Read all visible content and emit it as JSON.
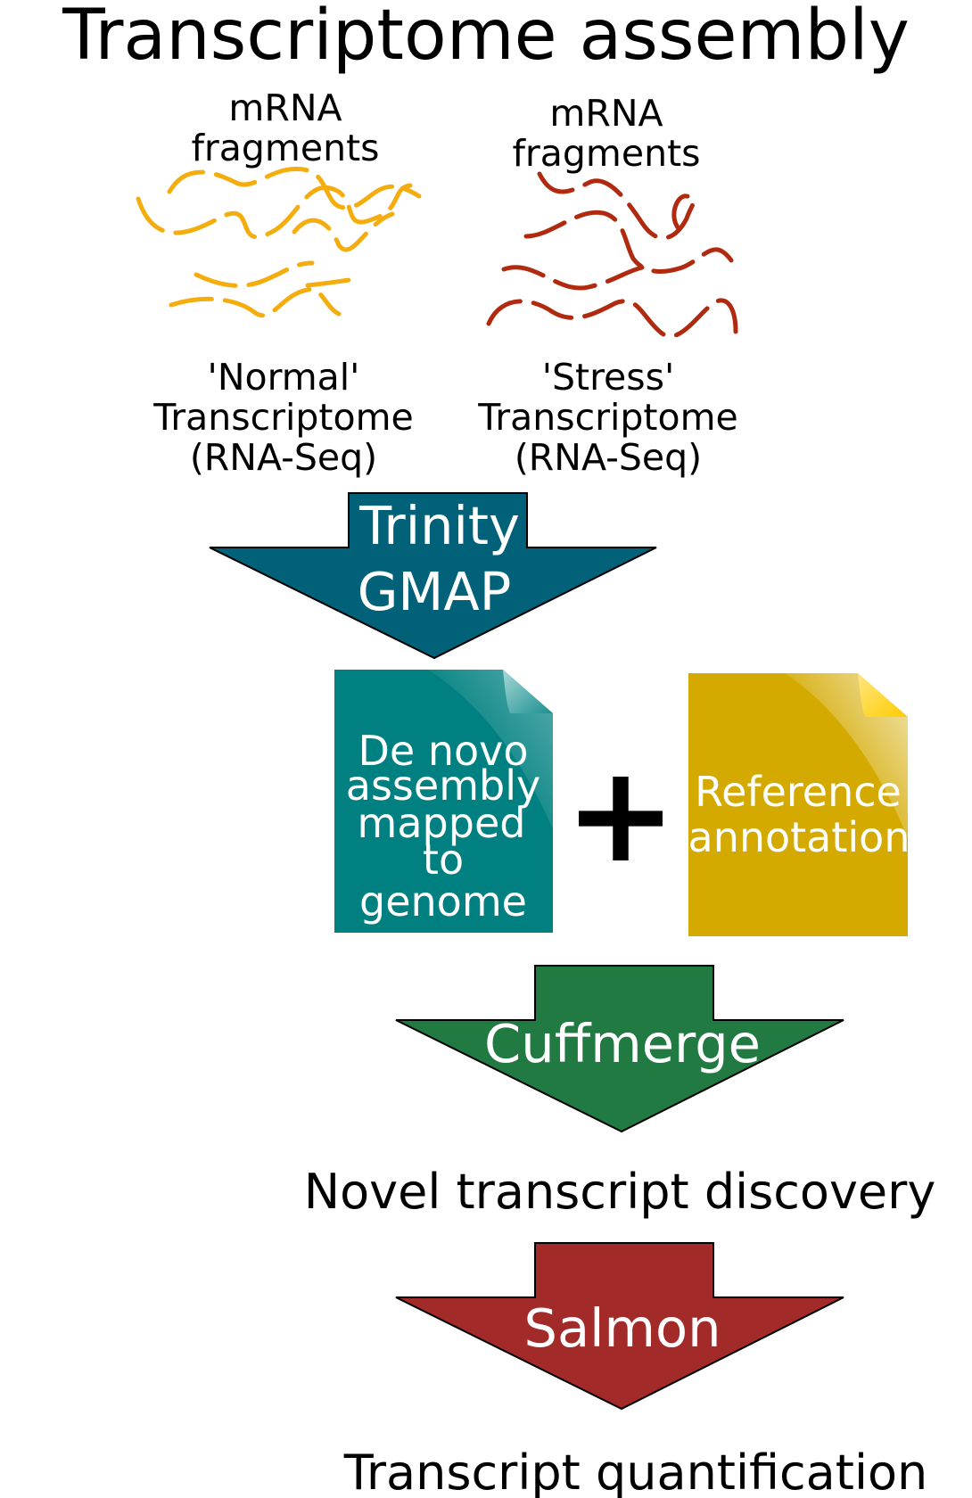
{
  "title": "Transcriptome assembly",
  "samples": [
    {
      "fragments_label_line1": "mRNA",
      "fragments_label_line2": "fragments",
      "caption_line1": "'Normal'",
      "caption_line2": "Transcriptome",
      "caption_line3": "(RNA-Seq)",
      "color": "#f5ad0e"
    },
    {
      "fragments_label_line1": "mRNA",
      "fragments_label_line2": "fragments",
      "caption_line1": "'Stress'",
      "caption_line2": "Transcriptome",
      "caption_line3": "(RNA-Seq)",
      "color": "#b02a10"
    }
  ],
  "steps": {
    "assembly": {
      "line1": "Trinity",
      "line2": "GMAP",
      "color": "#006178"
    },
    "merge": {
      "label": "Cuffmerge",
      "color": "#217a42"
    },
    "quant": {
      "label": "Salmon",
      "color": "#a22b2a"
    }
  },
  "documents": {
    "de_novo": {
      "line1": "De novo",
      "line2": "assembly",
      "line3": "mapped",
      "line4": "to",
      "line5": "genome",
      "color": "#008080"
    },
    "plus_symbol": "+",
    "reference": {
      "line1": "Reference",
      "line2": "annotation",
      "color": "#d4aa00"
    }
  },
  "outcomes": {
    "discovery": "Novel transcript discovery",
    "quantification": "Transcript quantification"
  }
}
